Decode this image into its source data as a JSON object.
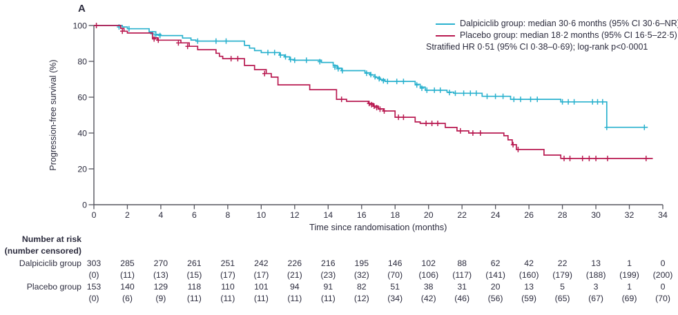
{
  "panel_label": "A",
  "colors": {
    "dalpiciclib": "#29b1ce",
    "placebo": "#b81950",
    "text": "#2b2b3d",
    "axis": "#53535c"
  },
  "y_axis": {
    "title": "Progression-free survival (%)",
    "ticks": [
      0,
      20,
      40,
      60,
      80,
      100
    ],
    "range": [
      0,
      100
    ]
  },
  "x_axis": {
    "title": "Time since randomisation (months)",
    "ticks": [
      0,
      2,
      4,
      6,
      8,
      10,
      12,
      14,
      16,
      18,
      20,
      22,
      24,
      26,
      28,
      30,
      32,
      34
    ],
    "range": [
      0,
      34
    ]
  },
  "legend": {
    "items": [
      {
        "label": "Dalpiciclib group: median 30·6 months (95% CI 30·6–NR)",
        "color_key": "dalpiciclib"
      },
      {
        "label": "Placebo group: median 18·2 months (95% CI 16·5–22·5)",
        "color_key": "placebo"
      }
    ],
    "note": "Stratified HR 0·51 (95% CI 0·38–0·69); log-rank p<0·0001"
  },
  "chart_data": {
    "type": "line",
    "subtype": "kaplan-meier-step",
    "xlabel": "Time since randomisation (months)",
    "ylabel": "Progression-free survival (%)",
    "xlim": [
      0,
      34
    ],
    "ylim": [
      0,
      100
    ],
    "grid": false,
    "legend_position": "top-right",
    "series": [
      {
        "name": "Dalpiciclib group",
        "color": "#29b1ce",
        "median_months": "30·6",
        "ci": "30·6–NR",
        "steps": [
          [
            0,
            100
          ],
          [
            1.7,
            99.2
          ],
          [
            2.0,
            98.2
          ],
          [
            3.3,
            96.5
          ],
          [
            3.7,
            95.0
          ],
          [
            4.0,
            94.4
          ],
          [
            5.3,
            93.0
          ],
          [
            5.8,
            91.9
          ],
          [
            6.1,
            91.3
          ],
          [
            9.0,
            88.9
          ],
          [
            9.3,
            87.4
          ],
          [
            9.6,
            86.0
          ],
          [
            10.0,
            84.9
          ],
          [
            11.1,
            83.5
          ],
          [
            11.4,
            82.5
          ],
          [
            11.7,
            81.0
          ],
          [
            12.0,
            80.6
          ],
          [
            13.6,
            79.4
          ],
          [
            14.3,
            77.7
          ],
          [
            14.55,
            76.2
          ],
          [
            14.8,
            74.8
          ],
          [
            16.2,
            73.6
          ],
          [
            16.5,
            72.4
          ],
          [
            16.8,
            71.0
          ],
          [
            17.1,
            69.8
          ],
          [
            17.4,
            68.8
          ],
          [
            19.2,
            67.2
          ],
          [
            19.5,
            65.6
          ],
          [
            19.8,
            63.9
          ],
          [
            21.1,
            62.8
          ],
          [
            21.5,
            62.2
          ],
          [
            23.2,
            60.5
          ],
          [
            24.9,
            58.8
          ],
          [
            27.9,
            57.4
          ],
          [
            30.65,
            43.2
          ],
          [
            33.1,
            43.2
          ]
        ],
        "censor_marks": [
          [
            1.5,
            99.2
          ],
          [
            2.1,
            98.2
          ],
          [
            3.5,
            95.4
          ],
          [
            3.7,
            94.7
          ],
          [
            3.95,
            94.4
          ],
          [
            6.2,
            91.3
          ],
          [
            7.3,
            91.3
          ],
          [
            7.9,
            91.3
          ],
          [
            10.4,
            84.9
          ],
          [
            10.8,
            84.9
          ],
          [
            11.15,
            83.5
          ],
          [
            11.45,
            82.5
          ],
          [
            11.75,
            81.0
          ],
          [
            12.0,
            80.6
          ],
          [
            12.7,
            80.6
          ],
          [
            13.5,
            79.8
          ],
          [
            14.4,
            76.8
          ],
          [
            14.6,
            75.9
          ],
          [
            14.85,
            74.8
          ],
          [
            16.3,
            73.4
          ],
          [
            16.55,
            72.6
          ],
          [
            16.8,
            71.4
          ],
          [
            17.05,
            70.3
          ],
          [
            17.3,
            69.2
          ],
          [
            17.55,
            68.8
          ],
          [
            18.1,
            68.8
          ],
          [
            18.5,
            68.8
          ],
          [
            19.3,
            66.8
          ],
          [
            19.6,
            65.0
          ],
          [
            19.9,
            63.9
          ],
          [
            20.35,
            63.9
          ],
          [
            20.7,
            63.9
          ],
          [
            21.25,
            62.6
          ],
          [
            21.6,
            62.2
          ],
          [
            22.1,
            62.2
          ],
          [
            22.5,
            62.2
          ],
          [
            22.85,
            62.2
          ],
          [
            23.5,
            60.5
          ],
          [
            24.0,
            60.5
          ],
          [
            24.45,
            60.5
          ],
          [
            25.1,
            58.8
          ],
          [
            25.5,
            58.8
          ],
          [
            26.1,
            58.8
          ],
          [
            26.5,
            58.8
          ],
          [
            28.0,
            57.4
          ],
          [
            28.35,
            57.4
          ],
          [
            28.7,
            57.4
          ],
          [
            29.8,
            57.4
          ],
          [
            30.1,
            57.4
          ],
          [
            30.4,
            57.4
          ],
          [
            30.65,
            43.2
          ],
          [
            32.9,
            43.2
          ]
        ]
      },
      {
        "name": "Placebo group",
        "color": "#b81950",
        "median_months": "18·2",
        "ci": "16·5–22·5",
        "steps": [
          [
            0,
            100
          ],
          [
            1.6,
            98.4
          ],
          [
            1.8,
            96.8
          ],
          [
            2.0,
            95.8
          ],
          [
            3.5,
            93.1
          ],
          [
            3.8,
            91.8
          ],
          [
            5.2,
            90.3
          ],
          [
            5.7,
            88.4
          ],
          [
            6.2,
            86.5
          ],
          [
            7.3,
            84.5
          ],
          [
            7.5,
            82.8
          ],
          [
            7.7,
            81.5
          ],
          [
            9.0,
            77.7
          ],
          [
            9.6,
            75.4
          ],
          [
            10.3,
            73.2
          ],
          [
            10.6,
            71.2
          ],
          [
            11.0,
            66.9
          ],
          [
            12.9,
            64.2
          ],
          [
            14.5,
            58.8
          ],
          [
            15.1,
            57.7
          ],
          [
            16.4,
            56.5
          ],
          [
            16.7,
            55.0
          ],
          [
            17.0,
            53.5
          ],
          [
            17.3,
            52.3
          ],
          [
            18.0,
            48.8
          ],
          [
            19.2,
            46.2
          ],
          [
            19.5,
            45.4
          ],
          [
            21.0,
            43.1
          ],
          [
            21.7,
            41.2
          ],
          [
            22.4,
            40.0
          ],
          [
            24.5,
            38.5
          ],
          [
            24.75,
            36.2
          ],
          [
            25.0,
            33.5
          ],
          [
            25.25,
            30.8
          ],
          [
            26.9,
            27.7
          ],
          [
            27.9,
            25.8
          ],
          [
            33.4,
            25.8
          ]
        ],
        "censor_marks": [
          [
            0.15,
            100
          ],
          [
            1.7,
            96.8
          ],
          [
            3.6,
            92.5
          ],
          [
            3.85,
            91.8
          ],
          [
            5.05,
            90.3
          ],
          [
            5.6,
            88.4
          ],
          [
            8.2,
            81.5
          ],
          [
            8.6,
            81.5
          ],
          [
            10.2,
            73.2
          ],
          [
            14.8,
            58.8
          ],
          [
            16.45,
            56.5
          ],
          [
            16.6,
            55.8
          ],
          [
            16.75,
            55.0
          ],
          [
            16.9,
            54.2
          ],
          [
            17.1,
            53.3
          ],
          [
            17.35,
            52.3
          ],
          [
            18.2,
            48.8
          ],
          [
            18.5,
            48.8
          ],
          [
            19.85,
            45.4
          ],
          [
            20.2,
            45.4
          ],
          [
            20.55,
            45.4
          ],
          [
            21.9,
            41.2
          ],
          [
            22.65,
            40.0
          ],
          [
            23.1,
            40.0
          ],
          [
            25.05,
            33.5
          ],
          [
            25.35,
            30.8
          ],
          [
            28.1,
            25.8
          ],
          [
            28.45,
            25.8
          ],
          [
            29.2,
            25.8
          ],
          [
            29.6,
            25.8
          ],
          [
            30.0,
            25.8
          ],
          [
            30.7,
            25.8
          ],
          [
            33.0,
            25.8
          ]
        ]
      }
    ]
  },
  "risk_table": {
    "header_line1": "Number at risk",
    "header_line2": "(number censored)",
    "months": [
      0,
      2,
      4,
      6,
      8,
      10,
      12,
      14,
      16,
      18,
      20,
      22,
      24,
      26,
      28,
      30,
      32,
      34
    ],
    "rows": [
      {
        "label": "Dalpiciclib group",
        "at_risk": [
          303,
          285,
          270,
          261,
          251,
          242,
          226,
          216,
          195,
          146,
          102,
          88,
          62,
          42,
          22,
          13,
          1,
          0
        ],
        "censored": [
          "(0)",
          "(11)",
          "(13)",
          "(15)",
          "(17)",
          "(17)",
          "(21)",
          "(23)",
          "(32)",
          "(70)",
          "(106)",
          "(117)",
          "(141)",
          "(160)",
          "(179)",
          "(188)",
          "(199)",
          "(200)"
        ]
      },
      {
        "label": "Placebo group",
        "at_risk": [
          153,
          140,
          129,
          118,
          110,
          101,
          94,
          91,
          82,
          51,
          38,
          31,
          20,
          13,
          5,
          3,
          1,
          0
        ],
        "censored": [
          "(0)",
          "(6)",
          "(9)",
          "(11)",
          "(11)",
          "(11)",
          "(11)",
          "(11)",
          "(12)",
          "(34)",
          "(42)",
          "(46)",
          "(56)",
          "(59)",
          "(65)",
          "(67)",
          "(69)",
          "(70)"
        ]
      }
    ]
  }
}
